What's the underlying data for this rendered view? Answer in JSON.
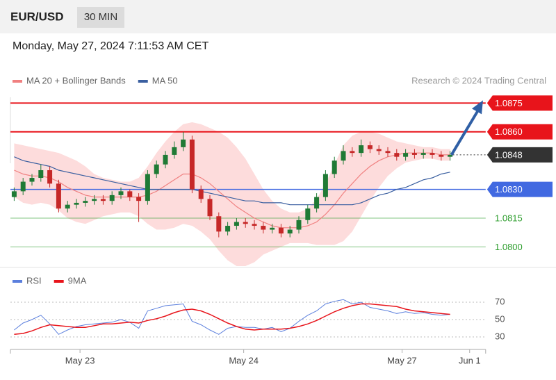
{
  "header": {
    "symbol": "EUR/USD",
    "interval": "30 MIN",
    "timestamp": "Monday, May 27, 2024 7:11:53 AM CET",
    "credit": "Research © 2024 Trading Central"
  },
  "chart_data": [
    {
      "type": "candlestick",
      "open": [
        1.0826,
        1.0829,
        1.0834,
        1.0836,
        1.084,
        1.0833,
        1.082,
        1.0822,
        1.0823,
        1.0824,
        1.0825,
        1.0824,
        1.0827,
        1.0829,
        1.0826,
        1.0824,
        1.0838,
        1.0843,
        1.0848,
        1.0852,
        1.0856,
        1.083,
        1.0825,
        1.0816,
        1.0808,
        1.0811,
        1.0813,
        1.0812,
        1.0811,
        1.0809,
        1.081,
        1.0807,
        1.0809,
        1.0814,
        1.082,
        1.0826,
        1.0838,
        1.0845,
        1.085,
        1.0849,
        1.0853,
        1.0851,
        1.085,
        1.0849,
        1.0847,
        1.0849,
        1.0848,
        1.0849,
        1.0848,
        1.0847
      ],
      "high": [
        1.0831,
        1.0836,
        1.0838,
        1.0843,
        1.0842,
        1.0835,
        1.0824,
        1.0825,
        1.0826,
        1.0827,
        1.0827,
        1.0829,
        1.0831,
        1.083,
        1.0828,
        1.084,
        1.0845,
        1.085,
        1.0855,
        1.086,
        1.0858,
        1.0832,
        1.0827,
        1.0818,
        1.0813,
        1.0815,
        1.0815,
        1.0814,
        1.0813,
        1.0812,
        1.0812,
        1.0811,
        1.0816,
        1.0822,
        1.0828,
        1.084,
        1.0847,
        1.0853,
        1.0852,
        1.0856,
        1.0855,
        1.0853,
        1.0852,
        1.0851,
        1.0851,
        1.0851,
        1.0851,
        1.0851,
        1.085,
        1.085
      ],
      "low": [
        1.0824,
        1.0827,
        1.0832,
        1.0834,
        1.0831,
        1.0818,
        1.0818,
        1.082,
        1.0821,
        1.0822,
        1.0822,
        1.0822,
        1.0825,
        1.0824,
        1.0813,
        1.0822,
        1.0836,
        1.0841,
        1.0846,
        1.085,
        1.0828,
        1.0823,
        1.0814,
        1.0805,
        1.0806,
        1.0809,
        1.081,
        1.0809,
        1.0807,
        1.0807,
        1.0805,
        1.0805,
        1.0807,
        1.0812,
        1.0818,
        1.0824,
        1.0836,
        1.0843,
        1.0847,
        1.0847,
        1.0849,
        1.0848,
        1.0847,
        1.0845,
        1.0845,
        1.0846,
        1.0846,
        1.0846,
        1.0845,
        1.0845
      ],
      "close": [
        1.0829,
        1.0834,
        1.0836,
        1.084,
        1.0833,
        1.082,
        1.0822,
        1.0823,
        1.0824,
        1.0825,
        1.0824,
        1.0827,
        1.0829,
        1.0826,
        1.0824,
        1.0838,
        1.0843,
        1.0848,
        1.0852,
        1.0856,
        1.083,
        1.0825,
        1.0816,
        1.0808,
        1.0811,
        1.0813,
        1.0812,
        1.0811,
        1.0809,
        1.081,
        1.0807,
        1.0809,
        1.0814,
        1.082,
        1.0826,
        1.0838,
        1.0845,
        1.085,
        1.0849,
        1.0853,
        1.0851,
        1.085,
        1.0849,
        1.0847,
        1.0849,
        1.0848,
        1.0849,
        1.0848,
        1.0847,
        1.0848
      ],
      "up_color": "#1f7a35",
      "down_color": "#c62828",
      "series": [
        {
          "name": "MA 20 + Bollinger Bands",
          "color": "#f08080",
          "band_color": "#fddcdc",
          "values": [
            1.084,
            1.0838,
            1.0837,
            1.0837,
            1.0836,
            1.0834,
            1.0831,
            1.0829,
            1.0827,
            1.0826,
            1.0826,
            1.0826,
            1.0826,
            1.0826,
            1.0826,
            1.0827,
            1.0829,
            1.0832,
            1.0835,
            1.0838,
            1.0838,
            1.0836,
            1.0833,
            1.0829,
            1.0825,
            1.0821,
            1.0818,
            1.0815,
            1.0813,
            1.0811,
            1.081,
            1.081,
            1.081,
            1.0811,
            1.0813,
            1.0817,
            1.0822,
            1.0828,
            1.0833,
            1.0838,
            1.0842,
            1.0845,
            1.0847,
            1.0848,
            1.0849,
            1.0849,
            1.0849,
            1.0849,
            1.0848,
            1.0848
          ],
          "upper": [
            1.0854,
            1.0853,
            1.0852,
            1.0851,
            1.085,
            1.0849,
            1.0847,
            1.0845,
            1.0842,
            1.0838,
            1.0836,
            1.0835,
            1.0834,
            1.0834,
            1.0836,
            1.0842,
            1.0849,
            1.0855,
            1.086,
            1.0864,
            1.0865,
            1.0864,
            1.0862,
            1.086,
            1.0857,
            1.0852,
            1.0846,
            1.0838,
            1.083,
            1.0824,
            1.082,
            1.0818,
            1.0818,
            1.082,
            1.0825,
            1.0833,
            1.0843,
            1.0853,
            1.0858,
            1.086,
            1.086,
            1.0859,
            1.0857,
            1.0855,
            1.0854,
            1.0853,
            1.0852,
            1.0852,
            1.0851,
            1.0851
          ],
          "lower": [
            1.0826,
            1.0823,
            1.0822,
            1.0823,
            1.0822,
            1.0819,
            1.0815,
            1.0813,
            1.0812,
            1.0814,
            1.0816,
            1.0817,
            1.0818,
            1.0818,
            1.0816,
            1.0812,
            1.0809,
            1.0809,
            1.081,
            1.0812,
            1.0811,
            1.0808,
            1.0804,
            1.0798,
            1.0793,
            1.079,
            1.079,
            1.0792,
            1.0796,
            1.0798,
            1.08,
            1.0802,
            1.0802,
            1.0802,
            1.0801,
            1.0801,
            1.0801,
            1.0803,
            1.0808,
            1.0816,
            1.0824,
            1.0831,
            1.0837,
            1.0841,
            1.0844,
            1.0845,
            1.0846,
            1.0846,
            1.0845,
            1.0845
          ]
        },
        {
          "name": "MA 50",
          "color": "#3a5fa0",
          "values": [
            1.0847,
            1.0845,
            1.0844,
            1.0843,
            1.0842,
            1.084,
            1.0839,
            1.0838,
            1.0837,
            1.0836,
            1.0835,
            1.0834,
            1.0833,
            1.0832,
            1.0831,
            1.083,
            1.083,
            1.083,
            1.083,
            1.083,
            1.083,
            1.0829,
            1.0828,
            1.0827,
            1.0826,
            1.0825,
            1.0824,
            1.0824,
            1.0823,
            1.0823,
            1.0823,
            1.0822,
            1.0822,
            1.0822,
            1.0822,
            1.0822,
            1.0822,
            1.0822,
            1.0822,
            1.0823,
            1.0825,
            1.0827,
            1.0828,
            1.083,
            1.0831,
            1.0833,
            1.0835,
            1.0836,
            1.0838,
            1.0839
          ]
        }
      ],
      "levels": [
        {
          "value": 1.0875,
          "label": "1.0875",
          "color": "#e8141b",
          "box": true
        },
        {
          "value": 1.086,
          "label": "1.0860",
          "color": "#e8141b",
          "box": true
        },
        {
          "value": 1.0848,
          "label": "1.0848",
          "color": "#333333",
          "box": true,
          "dotted": true
        },
        {
          "value": 1.083,
          "label": "1.0830",
          "color": "#4169e1",
          "box": true
        },
        {
          "value": 1.0815,
          "label": "1.0815",
          "color": "#2e9e2e",
          "box": false
        },
        {
          "value": 1.08,
          "label": "1.0800",
          "color": "#2e9e2e",
          "box": false
        }
      ],
      "ylim": [
        1.079,
        1.089
      ],
      "xlim": [
        -0.5,
        53
      ]
    },
    {
      "type": "line",
      "series": [
        {
          "name": "RSI",
          "color": "#5b7fdd",
          "values": [
            38,
            46,
            50,
            55,
            45,
            33,
            38,
            42,
            44,
            45,
            46,
            47,
            50,
            47,
            40,
            60,
            63,
            66,
            67,
            68,
            48,
            44,
            38,
            33,
            40,
            42,
            41,
            41,
            39,
            41,
            36,
            40,
            48,
            55,
            60,
            68,
            71,
            73,
            68,
            70,
            64,
            62,
            60,
            57,
            59,
            57,
            58,
            56,
            55,
            56
          ]
        },
        {
          "name": "9MA",
          "color": "#e8141b",
          "values": [
            33,
            34,
            37,
            41,
            44,
            43,
            42,
            41,
            41,
            43,
            45,
            45,
            46,
            47,
            46,
            49,
            51,
            54,
            58,
            61,
            62,
            60,
            56,
            51,
            46,
            42,
            39,
            38,
            39,
            39,
            39,
            40,
            42,
            45,
            49,
            54,
            59,
            63,
            66,
            68,
            68,
            67,
            66,
            65,
            62,
            60,
            59,
            58,
            57,
            56
          ]
        }
      ],
      "ylim": [
        20,
        80
      ],
      "yticks": [
        30,
        50,
        70
      ],
      "xlim": [
        -0.5,
        53
      ],
      "xticks": [
        {
          "value": 7.4,
          "label": "May 23"
        },
        {
          "value": 25.8,
          "label": "May 24"
        },
        {
          "value": 43.6,
          "label": "May 27"
        },
        {
          "value": 51.2,
          "label": "Jun 1"
        }
      ]
    }
  ]
}
